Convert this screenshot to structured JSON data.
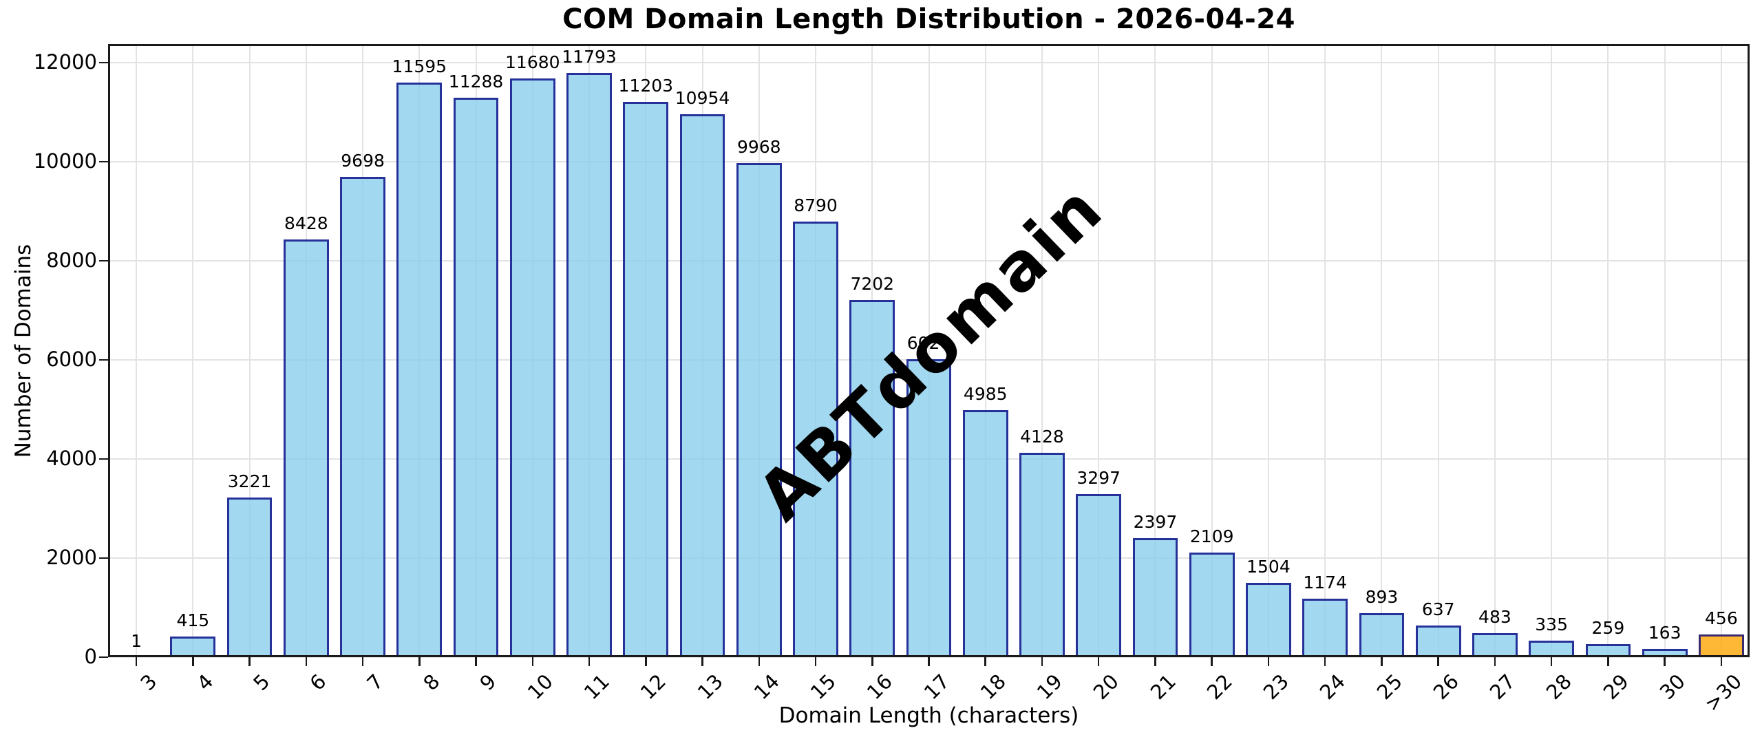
{
  "chart_data": {
    "type": "bar",
    "title": "COM Domain Length Distribution - 2026-04-24",
    "xlabel": "Domain Length (characters)",
    "ylabel": "Number of Domains",
    "watermark": "ABTdomain",
    "categories": [
      "3",
      "4",
      "5",
      "6",
      "7",
      "8",
      "9",
      "10",
      "11",
      "12",
      "13",
      "14",
      "15",
      "16",
      "17",
      "18",
      "19",
      "20",
      "21",
      "22",
      "23",
      "24",
      "25",
      "26",
      "27",
      "28",
      "29",
      "30",
      ">30"
    ],
    "values": [
      1,
      415,
      3221,
      8428,
      9698,
      11595,
      11288,
      11680,
      11793,
      11203,
      10954,
      9968,
      8790,
      7202,
      6020,
      4985,
      4128,
      3297,
      2397,
      2109,
      1504,
      1174,
      893,
      637,
      483,
      335,
      259,
      163,
      456
    ],
    "highlight_category": ">30",
    "yticks": [
      0,
      2000,
      4000,
      6000,
      8000,
      10000,
      12000
    ],
    "ylim": [
      0,
      12375
    ],
    "grid": true,
    "legend": "none",
    "colors": {
      "bar_fill": "#87CEEBC4",
      "bar_edge": "#000080C4",
      "highlight_fill": "#FFA500C9",
      "grid": "#E3E3E3",
      "watermark": "#A0A0A080",
      "text": "#000000",
      "spine": "#1A1A1A"
    }
  }
}
